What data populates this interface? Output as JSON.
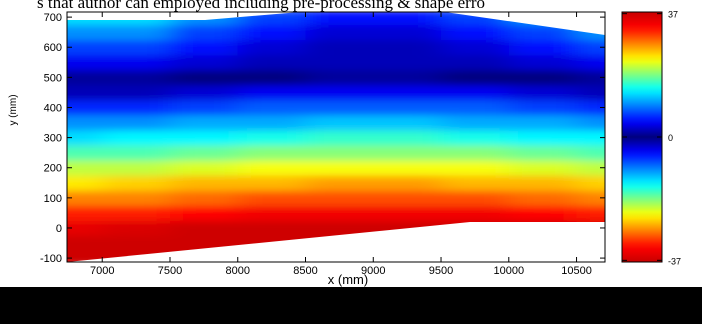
{
  "caption": "s that author can employed including pre-processing & shape erro",
  "chart_data": {
    "type": "heatmap",
    "xlabel": "x (mm)",
    "ylabel": "y (mm)",
    "xlim": [
      6740,
      10710
    ],
    "ylim": [
      -113,
      717
    ],
    "xticks": [
      7000,
      7500,
      8000,
      8500,
      9000,
      9500,
      10000,
      10500
    ],
    "yticks": [
      -100,
      0,
      100,
      200,
      300,
      400,
      500,
      600,
      700
    ],
    "clim": [
      -37.5,
      37.5
    ],
    "cticks": [
      -37,
      0,
      37
    ],
    "colormap": [
      [
        0,
        "#00007f"
      ],
      [
        0.12,
        "#0000ff"
      ],
      [
        0.38,
        "#00ffff"
      ],
      [
        0.62,
        "#ffff00"
      ],
      [
        0.88,
        "#ff0000"
      ],
      [
        1,
        "#c80000"
      ]
    ],
    "field": {
      "x": [
        6750,
        7250,
        7750,
        8250,
        8750,
        9250,
        9750,
        10250,
        10750
      ],
      "y": [
        -100,
        -50,
        0,
        50,
        100,
        150,
        200,
        250,
        300,
        350,
        400,
        450,
        500,
        550,
        600,
        650,
        700
      ],
      "z": [
        [
          -37,
          -37,
          -37,
          -37,
          -37,
          -37,
          -37,
          -37,
          -37
        ],
        [
          -37,
          -37,
          -37,
          -37,
          -37,
          -37,
          -37,
          -37,
          -37
        ],
        [
          -35,
          -36,
          -37,
          -37,
          -37,
          -37,
          -37,
          -37,
          -36
        ],
        [
          -32,
          -32,
          -33,
          -34,
          -34,
          -34,
          -34,
          -33,
          -32
        ],
        [
          -28,
          -28,
          -29,
          -30,
          -30,
          -30,
          -30,
          -29,
          -28
        ],
        [
          -24,
          -25,
          -26,
          -26,
          -27,
          -27,
          -26,
          -26,
          -25
        ],
        [
          -21,
          -21,
          -22,
          -23,
          -23,
          -23,
          -23,
          -22,
          -21
        ],
        [
          -17,
          -17,
          -18,
          -19,
          -19,
          -19,
          -19,
          -18,
          -17
        ],
        [
          -13,
          -14,
          -14,
          -15,
          -16,
          -16,
          -15,
          -14,
          -14
        ],
        [
          -10,
          -10,
          -11,
          -11,
          -12,
          -12,
          -11,
          -11,
          -10
        ],
        [
          -6,
          -6,
          -7,
          -8,
          -8,
          -8,
          -8,
          -7,
          -6
        ],
        [
          -2,
          -2,
          -3,
          -4,
          -4,
          -4,
          -4,
          -3,
          -2
        ],
        [
          1,
          1,
          0,
          0,
          -1,
          -1,
          0,
          0,
          1
        ],
        [
          4,
          4,
          3,
          2,
          2,
          2,
          2,
          3,
          4
        ],
        [
          7,
          7,
          5,
          3,
          2,
          2,
          3,
          5,
          7
        ],
        [
          10,
          10,
          7,
          5,
          3,
          3,
          5,
          7,
          10
        ],
        [
          13,
          13,
          10,
          7,
          5,
          5,
          7,
          10,
          13
        ]
      ]
    }
  }
}
